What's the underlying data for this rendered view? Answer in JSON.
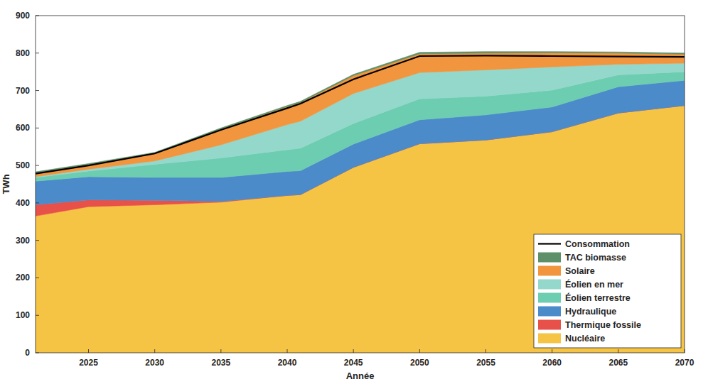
{
  "chart_data": {
    "type": "area",
    "stacked": true,
    "grid": false,
    "legend": "bottom-right",
    "x_label": "Année",
    "y_label": "TWh",
    "x": [
      2021,
      2025,
      2030,
      2035,
      2040,
      2041,
      2045,
      2050,
      2055,
      2060,
      2065,
      2070
    ],
    "xlim": [
      2021,
      2070
    ],
    "xticks": [
      2025,
      2030,
      2035,
      2040,
      2045,
      2050,
      2055,
      2060,
      2065,
      2070
    ],
    "ylim": [
      0,
      900
    ],
    "yticks": [
      0,
      100,
      200,
      300,
      400,
      500,
      600,
      700,
      800,
      900
    ],
    "series": [
      {
        "name": "Consommation",
        "type": "line",
        "color": "#000000",
        "values": [
          478,
          500,
          532,
          595,
          653,
          665,
          730,
          792,
          793,
          792,
          791,
          790
        ]
      },
      {
        "name": "TAC biomasse",
        "type": "area",
        "color": "#5d8f68",
        "values": [
          3,
          3,
          3,
          3,
          3,
          3,
          3,
          4,
          4,
          3,
          3,
          3
        ]
      },
      {
        "name": "Solaire",
        "type": "area",
        "color": "#f1953f",
        "values": [
          10,
          12,
          20,
          42,
          48,
          50,
          48,
          50,
          45,
          38,
          30,
          24
        ]
      },
      {
        "name": "Éolien en mer",
        "type": "area",
        "color": "#94d8cc",
        "values": [
          2,
          5,
          9,
          35,
          67,
          72,
          80,
          70,
          70,
          62,
          28,
          23
        ]
      },
      {
        "name": "Éolien terrestre",
        "type": "area",
        "color": "#6dcdb1",
        "values": [
          10,
          15,
          35,
          52,
          58,
          60,
          55,
          56,
          50,
          45,
          32,
          23
        ]
      },
      {
        "name": "Hydraulique",
        "type": "area",
        "color": "#4b8bc9",
        "values": [
          63,
          62,
          61,
          64,
          64,
          64,
          62,
          64,
          67,
          66,
          70,
          67
        ]
      },
      {
        "name": "Thermique fossile",
        "type": "area",
        "color": "#e8504a",
        "values": [
          30,
          18,
          12,
          2,
          0,
          0,
          0,
          0,
          0,
          0,
          0,
          0
        ]
      },
      {
        "name": "Nucléaire",
        "type": "area",
        "color": "#f6c445",
        "values": [
          365,
          390,
          395,
          402,
          420,
          422,
          495,
          558,
          568,
          590,
          640,
          660
        ]
      }
    ]
  }
}
